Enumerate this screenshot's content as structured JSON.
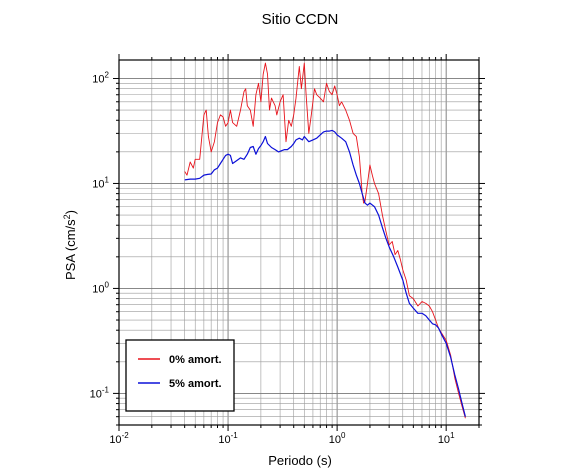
{
  "chart_data": {
    "type": "line",
    "title": "Sitio CCDN",
    "xlabel": "Periodo (s)",
    "ylabel_main": "PSA (cm/s",
    "ylabel_sup": "2",
    "ylabel_tail": ")",
    "x_scale": "log",
    "y_scale": "log",
    "xlim": [
      0.01,
      20
    ],
    "ylim": [
      0.05,
      150
    ],
    "grid": true,
    "legend_position": "bottom-left",
    "x_ticks": [
      {
        "value": 0.01,
        "base": "10",
        "exp": "-2"
      },
      {
        "value": 0.1,
        "base": "10",
        "exp": "-1"
      },
      {
        "value": 1,
        "base": "10",
        "exp": "0"
      },
      {
        "value": 10,
        "base": "10",
        "exp": "1"
      }
    ],
    "y_ticks": [
      {
        "value": 0.1,
        "base": "10",
        "exp": "-1"
      },
      {
        "value": 1,
        "base": "10",
        "exp": "0"
      },
      {
        "value": 10,
        "base": "10",
        "exp": "1"
      },
      {
        "value": 100,
        "base": "10",
        "exp": "2"
      }
    ],
    "series": [
      {
        "name": "0% amort.",
        "color": "#e8141c",
        "points": [
          [
            0.04,
            13
          ],
          [
            0.042,
            12
          ],
          [
            0.045,
            16
          ],
          [
            0.048,
            14
          ],
          [
            0.05,
            17
          ],
          [
            0.055,
            17
          ],
          [
            0.06,
            45
          ],
          [
            0.063,
            50
          ],
          [
            0.066,
            28
          ],
          [
            0.07,
            20
          ],
          [
            0.075,
            25
          ],
          [
            0.08,
            38
          ],
          [
            0.085,
            45
          ],
          [
            0.09,
            43
          ],
          [
            0.095,
            35
          ],
          [
            0.1,
            38
          ],
          [
            0.105,
            50
          ],
          [
            0.11,
            38
          ],
          [
            0.12,
            35
          ],
          [
            0.13,
            50
          ],
          [
            0.14,
            75
          ],
          [
            0.145,
            80
          ],
          [
            0.15,
            55
          ],
          [
            0.16,
            50
          ],
          [
            0.17,
            35
          ],
          [
            0.18,
            70
          ],
          [
            0.19,
            90
          ],
          [
            0.2,
            60
          ],
          [
            0.21,
            110
          ],
          [
            0.22,
            140
          ],
          [
            0.23,
            110
          ],
          [
            0.24,
            50
          ],
          [
            0.25,
            65
          ],
          [
            0.27,
            55
          ],
          [
            0.28,
            45
          ],
          [
            0.3,
            60
          ],
          [
            0.32,
            70
          ],
          [
            0.34,
            25
          ],
          [
            0.36,
            40
          ],
          [
            0.38,
            35
          ],
          [
            0.4,
            45
          ],
          [
            0.42,
            65
          ],
          [
            0.45,
            130
          ],
          [
            0.47,
            80
          ],
          [
            0.5,
            140
          ],
          [
            0.52,
            70
          ],
          [
            0.55,
            30
          ],
          [
            0.58,
            45
          ],
          [
            0.62,
            80
          ],
          [
            0.65,
            70
          ],
          [
            0.7,
            65
          ],
          [
            0.75,
            60
          ],
          [
            0.8,
            90
          ],
          [
            0.85,
            75
          ],
          [
            0.9,
            70
          ],
          [
            0.95,
            85
          ],
          [
            1.0,
            70
          ],
          [
            1.05,
            55
          ],
          [
            1.1,
            60
          ],
          [
            1.2,
            50
          ],
          [
            1.3,
            40
          ],
          [
            1.4,
            30
          ],
          [
            1.5,
            28
          ],
          [
            1.6,
            18
          ],
          [
            1.7,
            8
          ],
          [
            1.75,
            6.5
          ],
          [
            1.8,
            6.8
          ],
          [
            1.9,
            10
          ],
          [
            2.0,
            15
          ],
          [
            2.1,
            12
          ],
          [
            2.2,
            10
          ],
          [
            2.4,
            8
          ],
          [
            2.6,
            5
          ],
          [
            2.8,
            3.5
          ],
          [
            3.0,
            2.6
          ],
          [
            3.2,
            2.8
          ],
          [
            3.4,
            2.1
          ],
          [
            3.6,
            2.3
          ],
          [
            3.8,
            1.9
          ],
          [
            4.0,
            1.5
          ],
          [
            4.3,
            1.2
          ],
          [
            4.6,
            0.85
          ],
          [
            5.0,
            0.8
          ],
          [
            5.5,
            0.68
          ],
          [
            6.0,
            0.75
          ],
          [
            6.5,
            0.72
          ],
          [
            7.0,
            0.68
          ],
          [
            7.5,
            0.6
          ],
          [
            8.0,
            0.5
          ],
          [
            8.5,
            0.42
          ],
          [
            9.0,
            0.38
          ],
          [
            10.0,
            0.32
          ],
          [
            11.0,
            0.23
          ],
          [
            12.0,
            0.14
          ],
          [
            13.0,
            0.1
          ],
          [
            14.0,
            0.075
          ],
          [
            15.0,
            0.058
          ]
        ]
      },
      {
        "name": "5% amort.",
        "color": "#0c10d8",
        "points": [
          [
            0.04,
            10.8
          ],
          [
            0.045,
            11
          ],
          [
            0.05,
            11
          ],
          [
            0.055,
            11.2
          ],
          [
            0.06,
            12
          ],
          [
            0.065,
            12.2
          ],
          [
            0.07,
            12.3
          ],
          [
            0.075,
            13.5
          ],
          [
            0.08,
            14
          ],
          [
            0.085,
            15.5
          ],
          [
            0.09,
            17
          ],
          [
            0.095,
            18.5
          ],
          [
            0.1,
            19
          ],
          [
            0.105,
            18.5
          ],
          [
            0.11,
            15.5
          ],
          [
            0.12,
            16.5
          ],
          [
            0.13,
            17.5
          ],
          [
            0.14,
            17
          ],
          [
            0.15,
            19
          ],
          [
            0.16,
            22
          ],
          [
            0.17,
            22.5
          ],
          [
            0.18,
            19
          ],
          [
            0.19,
            21.5
          ],
          [
            0.2,
            23
          ],
          [
            0.21,
            25
          ],
          [
            0.22,
            28
          ],
          [
            0.23,
            24
          ],
          [
            0.25,
            22
          ],
          [
            0.27,
            21
          ],
          [
            0.29,
            20
          ],
          [
            0.31,
            20.5
          ],
          [
            0.33,
            21
          ],
          [
            0.35,
            21
          ],
          [
            0.38,
            22.5
          ],
          [
            0.4,
            24
          ],
          [
            0.42,
            26
          ],
          [
            0.45,
            27
          ],
          [
            0.48,
            26
          ],
          [
            0.5,
            28
          ],
          [
            0.55,
            25
          ],
          [
            0.6,
            26
          ],
          [
            0.65,
            27
          ],
          [
            0.7,
            29
          ],
          [
            0.75,
            31
          ],
          [
            0.8,
            31.5
          ],
          [
            0.85,
            31.5
          ],
          [
            0.9,
            32
          ],
          [
            0.95,
            31
          ],
          [
            1.0,
            29
          ],
          [
            1.1,
            27
          ],
          [
            1.2,
            25
          ],
          [
            1.3,
            20
          ],
          [
            1.4,
            15
          ],
          [
            1.5,
            12
          ],
          [
            1.6,
            10
          ],
          [
            1.7,
            8
          ],
          [
            1.8,
            6.5
          ],
          [
            1.9,
            6.2
          ],
          [
            2.0,
            6.5
          ],
          [
            2.2,
            6
          ],
          [
            2.4,
            5
          ],
          [
            2.6,
            3.8
          ],
          [
            2.8,
            3
          ],
          [
            3.0,
            2.5
          ],
          [
            3.3,
            2
          ],
          [
            3.6,
            1.6
          ],
          [
            4.0,
            1.2
          ],
          [
            4.3,
            0.9
          ],
          [
            4.6,
            0.72
          ],
          [
            5.0,
            0.65
          ],
          [
            5.5,
            0.58
          ],
          [
            6.0,
            0.58
          ],
          [
            6.5,
            0.55
          ],
          [
            7.0,
            0.5
          ],
          [
            7.5,
            0.46
          ],
          [
            8.0,
            0.45
          ],
          [
            8.5,
            0.42
          ],
          [
            9.0,
            0.37
          ],
          [
            10.0,
            0.3
          ],
          [
            11.0,
            0.22
          ],
          [
            12.0,
            0.15
          ],
          [
            13.0,
            0.11
          ],
          [
            14.0,
            0.08
          ],
          [
            15.0,
            0.06
          ]
        ]
      }
    ]
  }
}
